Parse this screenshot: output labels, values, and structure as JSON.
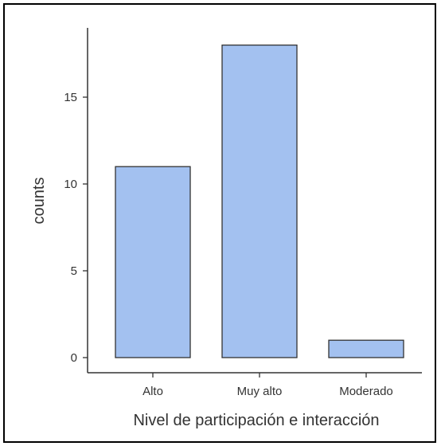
{
  "chart_data": {
    "type": "bar",
    "categories": [
      "Alto",
      "Muy alto",
      "Moderado"
    ],
    "values": [
      11,
      18,
      1
    ],
    "xlabel": "Nivel de participación e interacción",
    "ylabel": "counts",
    "ylim": [
      0,
      18
    ],
    "yticks": [
      0,
      5,
      10,
      15
    ],
    "grid": false,
    "colors": {
      "bar_fill": "#a3c1f0",
      "bar_stroke": "#333333",
      "axis": "#333333"
    }
  }
}
